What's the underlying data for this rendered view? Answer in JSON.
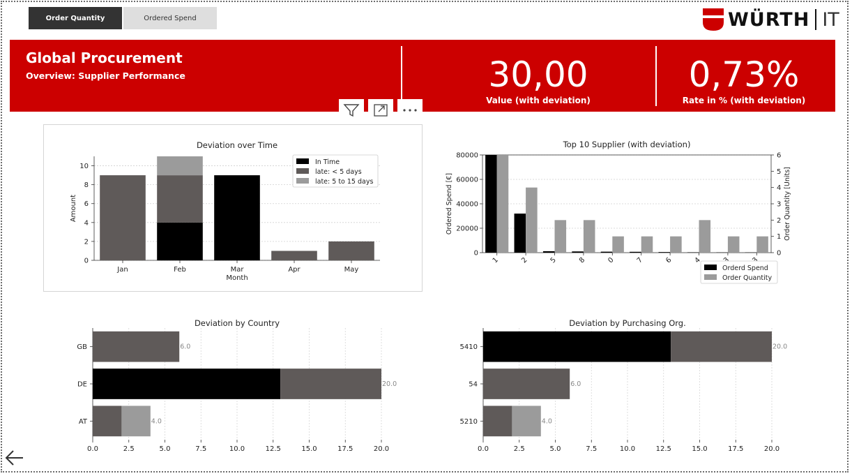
{
  "toggle": {
    "order_quantity_label": "Order Quantity",
    "ordered_spend_label": "Ordered Spend"
  },
  "logo": {
    "wordmark": "WÜRTH",
    "suffix": "IT"
  },
  "banner": {
    "title": "Global Procurement",
    "subtitle": "Overview: Supplier Performance",
    "kpis": [
      {
        "value": "30,00",
        "label": "Value (with deviation)"
      },
      {
        "value": "0,73%",
        "label": "Rate in % (with deviation)"
      }
    ]
  },
  "toolbar": {
    "filter_icon": "filter-icon",
    "focus_icon": "focus-mode-icon",
    "more_icon": "more-options-icon"
  },
  "colors": {
    "brand_red": "#cc0000",
    "in_time": "#000000",
    "late_lt5": "#5f5a59",
    "late_5_15": "#9b9b9b",
    "order_quantity": "#9b9b9b"
  },
  "chart_data": [
    {
      "id": "deviation_over_time",
      "type": "bar",
      "stacked": true,
      "title": "Deviation over Time",
      "xlabel": "Month",
      "ylabel": "Amount",
      "categories": [
        "Jan",
        "Feb",
        "Mar",
        "Apr",
        "May"
      ],
      "series": [
        {
          "name": "In Time",
          "color": "#000000",
          "values": [
            0,
            4,
            9,
            0,
            0
          ]
        },
        {
          "name": "late: < 5 days",
          "color": "#5f5a59",
          "values": [
            9,
            5,
            0,
            1,
            2
          ]
        },
        {
          "name": "late: 5 to 15 days",
          "color": "#9b9b9b",
          "values": [
            0,
            2,
            0,
            0,
            0
          ]
        }
      ],
      "ylim": [
        0,
        11
      ],
      "yticks": [
        0,
        2,
        4,
        6,
        8,
        10
      ],
      "grid": true,
      "legend": "top-right"
    },
    {
      "id": "top10_supplier",
      "type": "bar",
      "title": "Top 10 Supplier (with deviation)",
      "ylabel": "Ordered Spend [€]",
      "y2label": "Order Quantity [Units]",
      "categories": [
        "1",
        "2",
        "5",
        "8",
        "0",
        "7",
        "6",
        "4",
        "3",
        "3"
      ],
      "series": [
        {
          "name": "Orderd Spend",
          "color": "#000000",
          "axis": "left",
          "values": [
            80000,
            32000,
            1200,
            1000,
            800,
            700,
            500,
            300,
            200,
            200
          ]
        },
        {
          "name": "Order Quantity",
          "color": "#9b9b9b",
          "axis": "right",
          "values": [
            6,
            4,
            2,
            2,
            1,
            1,
            1,
            2,
            1,
            1
          ]
        }
      ],
      "ylim": [
        0,
        80000
      ],
      "yticks": [
        0,
        20000,
        40000,
        60000,
        80000
      ],
      "y2lim": [
        0,
        6
      ],
      "y2ticks": [
        0,
        1,
        2,
        3,
        4,
        5,
        6
      ],
      "grid": true,
      "legend": "bottom-right"
    },
    {
      "id": "deviation_by_country",
      "type": "bar",
      "orientation": "horizontal",
      "stacked": true,
      "title": "Deviation by Country",
      "categories": [
        "GB",
        "DE",
        "AT"
      ],
      "series": [
        {
          "name": "In Time",
          "color": "#000000",
          "values": [
            0,
            13,
            0
          ]
        },
        {
          "name": "late: < 5 days",
          "color": "#5f5a59",
          "values": [
            6,
            7,
            2
          ]
        },
        {
          "name": "late: 5 to 15 days",
          "color": "#9b9b9b",
          "values": [
            0,
            0,
            2
          ]
        }
      ],
      "totals": [
        "6.0",
        "20.0",
        "4.0"
      ],
      "xlim": [
        0,
        20
      ],
      "xticks": [
        0,
        2.5,
        5,
        7.5,
        10,
        12.5,
        15,
        17.5,
        20
      ],
      "xtick_labels": [
        "0.0",
        "2.5",
        "5.0",
        "7.5",
        "10.0",
        "12.5",
        "15.0",
        "17.5",
        "20.0"
      ],
      "grid": true
    },
    {
      "id": "deviation_by_purch_org",
      "type": "bar",
      "orientation": "horizontal",
      "stacked": true,
      "title": "Deviation by Purchasing Org.",
      "categories": [
        "5410",
        "54",
        "5210"
      ],
      "series": [
        {
          "name": "In Time",
          "color": "#000000",
          "values": [
            13,
            0,
            0
          ]
        },
        {
          "name": "late: < 5 days",
          "color": "#5f5a59",
          "values": [
            7,
            6,
            2
          ]
        },
        {
          "name": "late: 5 to 15 days",
          "color": "#9b9b9b",
          "values": [
            0,
            0,
            2
          ]
        }
      ],
      "totals": [
        "20.0",
        "6.0",
        "4.0"
      ],
      "xlim": [
        0,
        20
      ],
      "xticks": [
        0,
        2.5,
        5,
        7.5,
        10,
        12.5,
        15,
        17.5,
        20
      ],
      "xtick_labels": [
        "0.0",
        "2.5",
        "5.0",
        "7.5",
        "10.0",
        "12.5",
        "15.0",
        "17.5",
        "20.0"
      ],
      "grid": true
    }
  ]
}
